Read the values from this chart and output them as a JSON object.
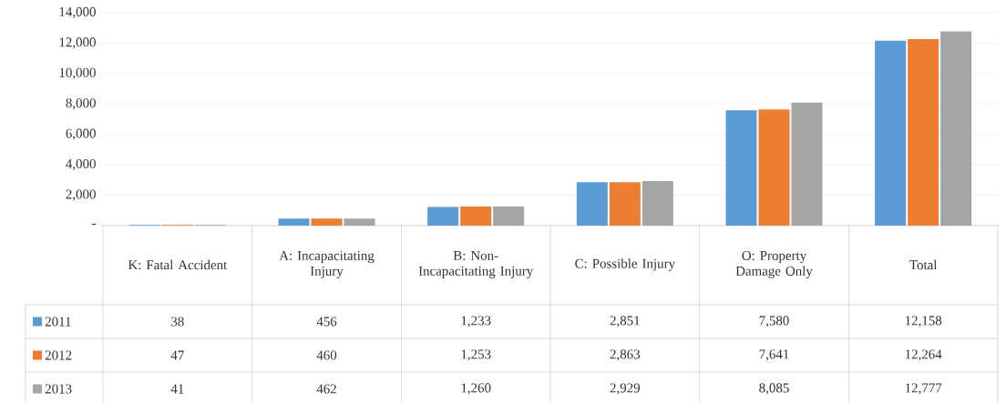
{
  "chart_data": {
    "type": "bar",
    "categories": [
      "K: Fatal Accident",
      "A: Incapacitating Injury",
      "B: Non-Incapacitating Injury",
      "C: Possible Injury",
      "O: Property Damage Only",
      "Total"
    ],
    "series": [
      {
        "name": "2011",
        "color": "#5b9bd5",
        "values": [
          38,
          456,
          1233,
          2851,
          7580,
          12158
        ],
        "value_labels": [
          "38",
          "456",
          "1,233",
          "2,851",
          "7,580",
          "12,158"
        ]
      },
      {
        "name": "2012",
        "color": "#ed7d31",
        "values": [
          47,
          460,
          1253,
          2863,
          7641,
          12264
        ],
        "value_labels": [
          "47",
          "460",
          "1,253",
          "2,863",
          "7,641",
          "12,264"
        ]
      },
      {
        "name": "2013",
        "color": "#a5a5a5",
        "values": [
          41,
          462,
          1260,
          2929,
          8085,
          12777
        ],
        "value_labels": [
          "41",
          "462",
          "1,260",
          "2,929",
          "8,085",
          "12,777"
        ]
      }
    ],
    "ylim": [
      0,
      14000
    ],
    "yticks": [
      {
        "value": 0,
        "label": "-"
      },
      {
        "value": 2000,
        "label": "2,000"
      },
      {
        "value": 4000,
        "label": "4,000"
      },
      {
        "value": 6000,
        "label": "6,000"
      },
      {
        "value": 8000,
        "label": "8,000"
      },
      {
        "value": 10000,
        "label": "10,000"
      },
      {
        "value": 12000,
        "label": "12,000"
      },
      {
        "value": 14000,
        "label": "14,000"
      }
    ],
    "grid": "y",
    "legend": "bottom"
  }
}
